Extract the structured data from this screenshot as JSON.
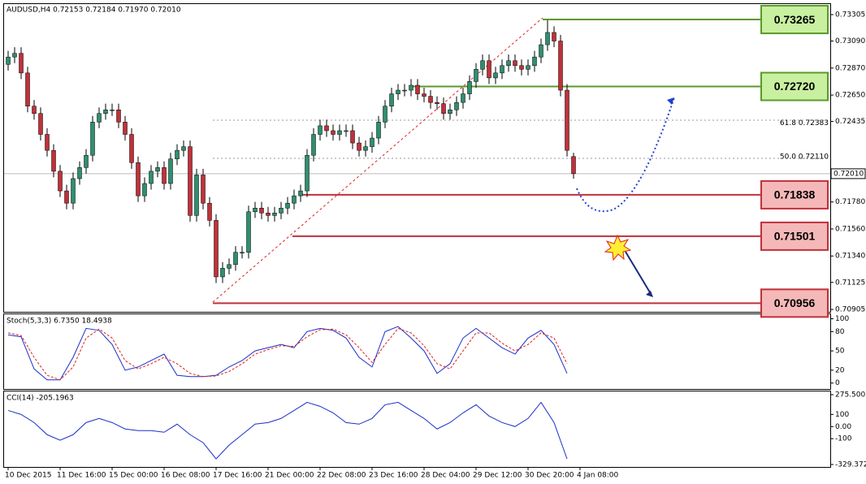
{
  "chart_data": [
    {
      "type": "candlestick",
      "title": "AUDUSD,H4  0.72153 0.72184 0.71970 0.72010",
      "up_color": "#2f8f6f",
      "down_color": "#c0313a",
      "open": [
        0.729,
        0.7296,
        0.7299,
        0.7283,
        0.7256,
        0.725,
        0.7233,
        0.722,
        0.7203,
        0.7187,
        0.7177,
        0.7197,
        0.7206,
        0.7216,
        0.7243,
        0.725,
        0.7253,
        0.7253,
        0.7243,
        0.7233,
        0.721,
        0.7183,
        0.7193,
        0.7203,
        0.7206,
        0.7193,
        0.7213,
        0.722,
        0.7223,
        0.7167,
        0.72,
        0.7177,
        0.7163,
        0.7117,
        0.7124,
        0.7127,
        0.7137,
        0.7137,
        0.717,
        0.7173,
        0.7169,
        0.7167,
        0.7169,
        0.7173,
        0.7177,
        0.7183,
        0.7187,
        0.7216,
        0.7233,
        0.724,
        0.7236,
        0.7233,
        0.7236,
        0.7236,
        0.7226,
        0.722,
        0.7223,
        0.723,
        0.7243,
        0.7256,
        0.7266,
        0.7269,
        0.7269,
        0.7273,
        0.7266,
        0.7264,
        0.7259,
        0.7258,
        0.725,
        0.7253,
        0.7259,
        0.7266,
        0.7276,
        0.7286,
        0.7293,
        0.7279,
        0.7283,
        0.7289,
        0.7293,
        0.7289,
        0.7286,
        0.7289,
        0.7296,
        0.7306,
        0.7316,
        0.7309,
        0.7269,
        0.7215
      ],
      "high": [
        0.7301,
        0.7304,
        0.7304,
        0.7288,
        0.7261,
        0.7255,
        0.7238,
        0.7225,
        0.7208,
        0.7192,
        0.7202,
        0.7211,
        0.7221,
        0.7248,
        0.7255,
        0.7258,
        0.7258,
        0.7258,
        0.7248,
        0.7238,
        0.7215,
        0.7198,
        0.7208,
        0.7211,
        0.7211,
        0.7218,
        0.7225,
        0.7228,
        0.7228,
        0.7205,
        0.7205,
        0.7182,
        0.7168,
        0.7129,
        0.7132,
        0.7142,
        0.7142,
        0.7175,
        0.7178,
        0.7178,
        0.7174,
        0.7174,
        0.7178,
        0.7182,
        0.7188,
        0.7192,
        0.7221,
        0.7238,
        0.7245,
        0.7245,
        0.7241,
        0.7241,
        0.7241,
        0.7241,
        0.7231,
        0.7228,
        0.7235,
        0.7248,
        0.7261,
        0.7271,
        0.7274,
        0.7274,
        0.7278,
        0.7278,
        0.7271,
        0.7269,
        0.7264,
        0.7263,
        0.7258,
        0.7264,
        0.7271,
        0.7281,
        0.7291,
        0.7298,
        0.7298,
        0.7288,
        0.7294,
        0.7298,
        0.7298,
        0.7294,
        0.7294,
        0.7301,
        0.7311,
        0.7326,
        0.7321,
        0.7314,
        0.7274,
        0.7218
      ],
      "low": [
        0.7285,
        0.7291,
        0.7278,
        0.7251,
        0.7245,
        0.7228,
        0.7215,
        0.7198,
        0.7182,
        0.7172,
        0.7172,
        0.7192,
        0.7201,
        0.7211,
        0.7238,
        0.7245,
        0.7248,
        0.7238,
        0.7228,
        0.7205,
        0.7178,
        0.7178,
        0.7188,
        0.7198,
        0.7188,
        0.7188,
        0.7208,
        0.7215,
        0.7162,
        0.7162,
        0.7172,
        0.7158,
        0.7112,
        0.7112,
        0.7119,
        0.7122,
        0.7132,
        0.7132,
        0.7165,
        0.7164,
        0.7162,
        0.7162,
        0.7164,
        0.7168,
        0.7172,
        0.7178,
        0.7182,
        0.7211,
        0.7228,
        0.7231,
        0.7228,
        0.7228,
        0.7231,
        0.7221,
        0.7215,
        0.7215,
        0.7218,
        0.7225,
        0.7238,
        0.7251,
        0.7261,
        0.7264,
        0.7264,
        0.7261,
        0.7259,
        0.7254,
        0.7253,
        0.7245,
        0.7245,
        0.7248,
        0.7254,
        0.7261,
        0.7271,
        0.7281,
        0.7274,
        0.7274,
        0.7278,
        0.7284,
        0.7284,
        0.7281,
        0.7281,
        0.7284,
        0.7291,
        0.7301,
        0.7304,
        0.7264,
        0.7215,
        0.7197
      ],
      "close": [
        0.7296,
        0.7299,
        0.7283,
        0.7256,
        0.725,
        0.7233,
        0.722,
        0.7203,
        0.7187,
        0.7177,
        0.7197,
        0.7206,
        0.7216,
        0.7243,
        0.725,
        0.7253,
        0.7253,
        0.7243,
        0.7233,
        0.721,
        0.7183,
        0.7193,
        0.7203,
        0.7206,
        0.7193,
        0.7213,
        0.722,
        0.7223,
        0.7167,
        0.72,
        0.7177,
        0.7163,
        0.7117,
        0.7124,
        0.7127,
        0.7137,
        0.7137,
        0.717,
        0.7173,
        0.7169,
        0.7167,
        0.7169,
        0.7173,
        0.7177,
        0.7183,
        0.7187,
        0.7216,
        0.7233,
        0.724,
        0.7236,
        0.7233,
        0.7236,
        0.7236,
        0.7226,
        0.722,
        0.7223,
        0.723,
        0.7243,
        0.7256,
        0.7266,
        0.7269,
        0.7269,
        0.7273,
        0.7266,
        0.7264,
        0.7259,
        0.7258,
        0.725,
        0.7253,
        0.7259,
        0.7266,
        0.7276,
        0.7286,
        0.7293,
        0.7279,
        0.7283,
        0.7289,
        0.7293,
        0.7289,
        0.7286,
        0.7289,
        0.7296,
        0.7306,
        0.7316,
        0.7309,
        0.7269,
        0.722,
        0.7201
      ],
      "ylim": [
        0.70892,
        0.73391
      ],
      "yticks": [
        0.73305,
        {
          "value": 0.7309,
          "label": "0.73090"
        },
        {
          "value": 0.7287,
          "label": "0.72870"
        },
        {
          "value": 0.7265,
          "label": "0.72650"
        },
        0.72435,
        {
          "value": 0.7178,
          "label": "0.71780"
        },
        {
          "value": 0.7156,
          "label": "0.71560"
        },
        {
          "value": 0.7134,
          "label": "0.71340"
        },
        0.71125,
        0.70905
      ],
      "current_price": {
        "value": 0.7201,
        "label": "0.72010"
      },
      "fib_labels": [
        {
          "value": 0.72383,
          "label": "61.8 0.72383"
        },
        {
          "value": 0.7211,
          "label": "50.0 0.72110"
        }
      ],
      "levels": [
        {
          "value": 0.73265,
          "label": "0.73265",
          "color": "#5a9a2a",
          "fill": "#c8f0a0"
        },
        {
          "value": 0.7272,
          "label": "0.72720",
          "color": "#5a9a2a",
          "fill": "#c8f0a0"
        },
        {
          "value": 0.71838,
          "label": "0.71838",
          "color": "#c0313a",
          "fill": "#f5b8b8"
        },
        {
          "value": 0.71501,
          "label": "0.71501",
          "color": "#c0313a",
          "fill": "#f5b8b8"
        },
        {
          "value": 0.70956,
          "label": "0.70956",
          "color": "#c0313a",
          "fill": "#f5b8b8"
        }
      ],
      "xticks": [
        {
          "value": 0,
          "label": "10 Dec 2015"
        },
        {
          "value": 8,
          "label": "11 Dec 16:00"
        },
        {
          "value": 16,
          "label": "15 Dec 00:00"
        },
        {
          "value": 24,
          "label": "16 Dec 08:00"
        },
        {
          "value": 32,
          "label": "17 Dec 16:00"
        },
        {
          "value": 40,
          "label": "21 Dec 00:00"
        },
        {
          "value": 48,
          "label": "22 Dec 08:00"
        },
        {
          "value": 56,
          "label": "23 Dec 16:00"
        },
        {
          "value": 64,
          "label": "28 Dec 04:00"
        },
        {
          "value": 72,
          "label": "29 Dec 12:00"
        },
        {
          "value": 80,
          "label": "30 Dec 20:00"
        },
        {
          "value": 88,
          "label": "4 Jan 08:00"
        }
      ]
    },
    {
      "type": "line",
      "title": "Stoch(5,3,3) 6.7350 18.4938",
      "series": [
        {
          "color": "#1a2fc8",
          "values": [
            75,
            72,
            22,
            5,
            5,
            40,
            85,
            82,
            60,
            20,
            25,
            35,
            45,
            12,
            10,
            10,
            12,
            25,
            35,
            50,
            55,
            60,
            55,
            80,
            85,
            82,
            70,
            40,
            25,
            80,
            88,
            70,
            50,
            15,
            30,
            70,
            85,
            70,
            55,
            45,
            70,
            82,
            60,
            15
          ]
        },
        {
          "color": "#e02020",
          "dashed": true,
          "values": [
            78,
            74,
            40,
            12,
            5,
            25,
            70,
            84,
            70,
            35,
            22,
            30,
            40,
            30,
            15,
            10,
            11,
            18,
            30,
            45,
            52,
            58,
            57,
            72,
            83,
            84,
            75,
            55,
            32,
            60,
            85,
            78,
            58,
            30,
            22,
            50,
            78,
            78,
            62,
            50,
            60,
            78,
            70,
            30
          ]
        }
      ],
      "ylim": [
        -8,
        107
      ],
      "yticks": [
        100,
        80,
        50,
        20,
        0
      ]
    },
    {
      "type": "line",
      "title": "CCI(14) -205.1963",
      "series": [
        {
          "color": "#1a2fc8",
          "values": [
            133,
            100,
            33,
            -67,
            -113,
            -67,
            33,
            67,
            33,
            -20,
            -33,
            -33,
            -47,
            20,
            -67,
            -133,
            -267,
            -153,
            -67,
            20,
            33,
            67,
            133,
            200,
            167,
            113,
            33,
            20,
            67,
            180,
            200,
            133,
            67,
            -20,
            33,
            113,
            180,
            87,
            33,
            0,
            67,
            200,
            33,
            -267
          ]
        }
      ],
      "ylim": [
        -340,
        290
      ],
      "yticks": [
        275.5002,
        100,
        {
          "value": 0,
          "label": "0.00"
        },
        -100,
        -329.3724
      ]
    }
  ]
}
